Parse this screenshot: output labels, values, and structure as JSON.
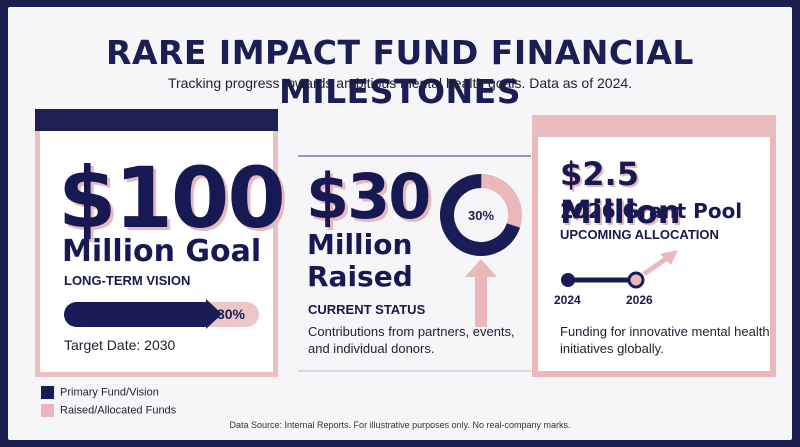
{
  "header": {
    "title": "RARE IMPACT FUND FINANCIAL MILESTONES",
    "subtitle": "Tracking progress towards ambitious mental health goals. Data as of 2024."
  },
  "goal_card": {
    "amount": "$100",
    "unit": "Million Goal",
    "label": "LONG-TERM VISION",
    "progress_label": "30%",
    "progress_fraction": 0.3,
    "target": "Target Date: 2030"
  },
  "raised_card": {
    "amount": "$30",
    "unit_line1": "Million",
    "unit_line2": "Raised",
    "donut_label": "30%",
    "donut_fraction": 0.3,
    "status": "CURRENT STATUS",
    "description": "Contributions from partners, events, and individual donors."
  },
  "grant_card": {
    "amount": "$2.5 Million",
    "pool": "2026 Grant Pool",
    "label": "UPCOMING ALLOCATION",
    "year_start": "2024",
    "year_end": "2026",
    "description": "Funding for innovative mental health initiatives globally."
  },
  "legend": [
    {
      "label": "Primary Fund/Vision",
      "color": "#1a1d55"
    },
    {
      "label": "Raised/Allocated Funds",
      "color": "#eab8bb"
    }
  ],
  "footer": {
    "source": "Data Source: Internal Reports. For illustrative purposes only. No real-company marks."
  },
  "colors": {
    "navy": "#1a1d55",
    "pink": "#eab8bb"
  }
}
